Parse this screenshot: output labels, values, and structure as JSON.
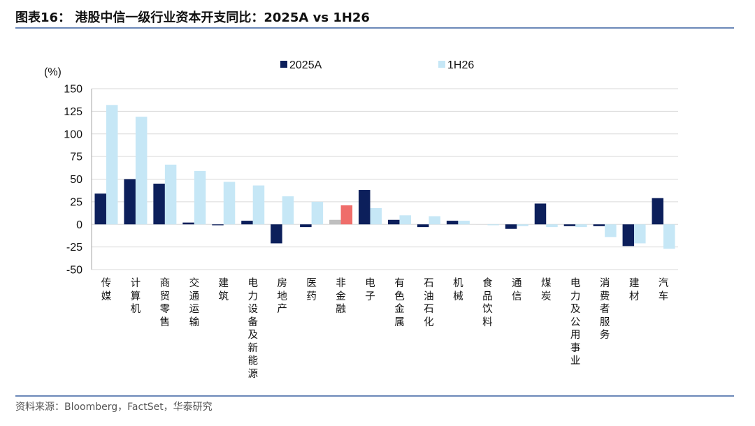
{
  "header": {
    "title": "图表16： 港股中信一级行业资本开支同比：2025A vs 1H26"
  },
  "colors": {
    "rule": "#6b88b8",
    "grid": "#d9d9d9",
    "axis": "#a6a6a6"
  },
  "chart_data": {
    "type": "bar",
    "xlabel": "",
    "ylabel": "(%)",
    "ylim": [
      -50,
      150
    ],
    "yticks": [
      150,
      125,
      100,
      75,
      50,
      25,
      0,
      -25,
      -50
    ],
    "grid": true,
    "legend": "top-center",
    "categories": [
      "传媒",
      "计算机",
      "商贸零售",
      "交通运输",
      "建筑",
      "电力设备及新能源",
      "房地产",
      "医药",
      "非金融",
      "电子",
      "有色金属",
      "石油石化",
      "机械",
      "食品饮料",
      "通信",
      "煤炭",
      "电力及公用事业",
      "消费者服务",
      "建材",
      "汽车"
    ],
    "series": [
      {
        "name": "2025A",
        "color": "#0c1f5b",
        "values": [
          34,
          50,
          45,
          2,
          -1,
          4,
          -21,
          -3,
          5,
          38,
          5,
          -3,
          4,
          0,
          -5,
          23,
          -2,
          -2,
          -24,
          29
        ],
        "point_colors": [
          null,
          null,
          null,
          null,
          null,
          null,
          null,
          null,
          "#bfbfbf",
          null,
          null,
          null,
          null,
          null,
          null,
          null,
          null,
          null,
          null,
          null
        ]
      },
      {
        "name": "1H26",
        "color": "#c6e7f6",
        "values": [
          132,
          119,
          66,
          59,
          47,
          43,
          31,
          25,
          21,
          18,
          10,
          9,
          4,
          -1,
          -2,
          -3,
          -3,
          -14,
          -21,
          -27
        ],
        "point_colors": [
          null,
          null,
          null,
          null,
          null,
          null,
          null,
          null,
          "#ef6d6a",
          null,
          null,
          null,
          null,
          null,
          null,
          null,
          null,
          null,
          null,
          null
        ]
      }
    ]
  },
  "footer": {
    "source": "资料来源：Bloomberg，FactSet，华泰研究"
  }
}
